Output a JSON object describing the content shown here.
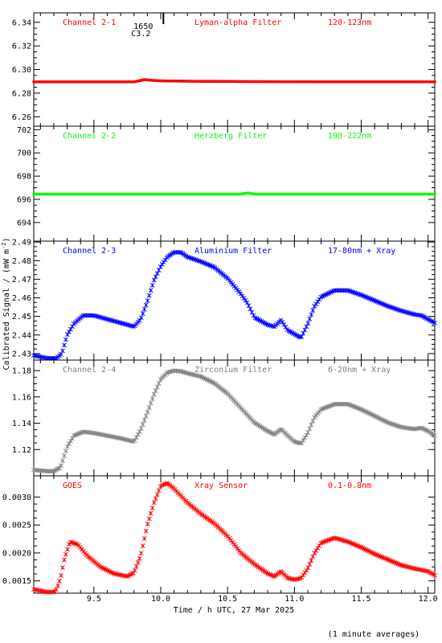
{
  "figure": {
    "xlabel": "Time / h UTC, 27 Mar 2025",
    "ylabel": "Calibrated Signal / (mW m",
    "ylabel_sup": "-2",
    "ylabel_close": ")",
    "footnote": "(1 minute averages)",
    "x_ticks": [
      "9.5",
      "10.0",
      "10.5",
      "11.0",
      "11.5",
      "12.0"
    ],
    "flare_marker": {
      "x": 10.02,
      "class_label": "1650",
      "level_label": "C3.2"
    }
  },
  "chart_data": [
    {
      "type": "scatter",
      "channel": "Channel 2-1",
      "filter": "Lyman-alpha Filter",
      "band": "120-123nm",
      "color": "#ff0000",
      "xlim": [
        9.05,
        12.05
      ],
      "ylim": [
        6.252,
        6.348
      ],
      "y_ticks": [
        "6.26",
        "6.28",
        "6.30",
        "6.32",
        "6.34"
      ],
      "series": [
        {
          "x": [
            9.05,
            9.8,
            9.84,
            9.88,
            9.92,
            9.98,
            10.1,
            10.6,
            11.0,
            11.5,
            12.05
          ],
          "y": [
            6.2895,
            6.2895,
            6.2905,
            6.2915,
            6.291,
            6.2905,
            6.2902,
            6.2898,
            6.2897,
            6.2896,
            6.2895
          ]
        }
      ]
    },
    {
      "type": "scatter",
      "channel": "Channel 2-2",
      "filter": "Herzberg Filter",
      "band": "190-222nm",
      "color": "#00ff00",
      "xlim": [
        9.05,
        12.05
      ],
      "ylim": [
        692.4,
        702.3
      ],
      "y_ticks": [
        "694",
        "696",
        "698",
        "700",
        "702"
      ],
      "series": [
        {
          "x": [
            9.05,
            9.5,
            10.0,
            10.6,
            10.65,
            10.7,
            11.0,
            11.5,
            12.05
          ],
          "y": [
            696.45,
            696.45,
            696.45,
            696.45,
            696.55,
            696.45,
            696.45,
            696.45,
            696.45
          ]
        }
      ]
    },
    {
      "type": "scatter",
      "channel": "Channel 2-3",
      "filter": "Aluminium Filter",
      "band": "17-80nm + Xray",
      "color": "#0000ff",
      "xlim": [
        9.05,
        12.05
      ],
      "ylim": [
        2.4265,
        2.4905
      ],
      "y_ticks": [
        "2.43",
        "2.44",
        "2.45",
        "2.46",
        "2.47",
        "2.48",
        "2.49"
      ],
      "series": [
        {
          "x": [
            9.05,
            9.15,
            9.22,
            9.26,
            9.3,
            9.35,
            9.42,
            9.5,
            9.6,
            9.7,
            9.8,
            9.85,
            9.9,
            9.95,
            10.0,
            10.05,
            10.1,
            10.15,
            10.2,
            10.3,
            10.4,
            10.5,
            10.6,
            10.65,
            10.7,
            10.8,
            10.85,
            10.9,
            10.95,
            11.0,
            11.05,
            11.1,
            11.15,
            11.2,
            11.3,
            11.4,
            11.5,
            11.6,
            11.7,
            11.8,
            11.9,
            11.95,
            12.0,
            12.05
          ],
          "y": [
            2.429,
            2.4275,
            2.4275,
            2.43,
            2.44,
            2.446,
            2.4505,
            2.4505,
            2.4485,
            2.4465,
            2.4445,
            2.4485,
            2.458,
            2.4695,
            2.477,
            2.482,
            2.4845,
            2.4845,
            2.482,
            2.4795,
            2.4765,
            2.4705,
            2.462,
            2.457,
            2.4495,
            2.4455,
            2.4445,
            2.448,
            2.4425,
            2.4405,
            2.4385,
            2.446,
            2.4555,
            2.4605,
            2.464,
            2.464,
            2.4615,
            2.4585,
            2.4555,
            2.453,
            2.451,
            2.4505,
            2.4485,
            2.4465
          ]
        }
      ]
    },
    {
      "type": "scatter",
      "channel": "Channel 2-4",
      "filter": "Zirconium Filter",
      "band": "6-20nm + Xray",
      "color": "#808080",
      "xlim": [
        9.05,
        12.05
      ],
      "ylim": [
        1.1,
        1.188
      ],
      "y_ticks": [
        "1.12",
        "1.14",
        "1.16",
        "1.18"
      ],
      "series": [
        {
          "x": [
            9.05,
            9.15,
            9.2,
            9.25,
            9.3,
            9.35,
            9.42,
            9.5,
            9.6,
            9.7,
            9.8,
            9.85,
            9.9,
            9.95,
            10.0,
            10.05,
            10.1,
            10.15,
            10.2,
            10.3,
            10.4,
            10.5,
            10.6,
            10.7,
            10.8,
            10.85,
            10.9,
            10.95,
            11.0,
            11.05,
            11.1,
            11.15,
            11.2,
            11.3,
            11.4,
            11.5,
            11.6,
            11.7,
            11.8,
            11.9,
            11.95,
            12.0,
            12.05
          ],
          "y": [
            1.1045,
            1.1035,
            1.1035,
            1.1065,
            1.122,
            1.1305,
            1.1335,
            1.1325,
            1.1305,
            1.1285,
            1.126,
            1.135,
            1.148,
            1.162,
            1.1735,
            1.1785,
            1.18,
            1.1795,
            1.178,
            1.1755,
            1.1705,
            1.1625,
            1.1515,
            1.1405,
            1.134,
            1.1315,
            1.1355,
            1.1305,
            1.126,
            1.1245,
            1.1325,
            1.1445,
            1.1505,
            1.1545,
            1.1545,
            1.1505,
            1.1455,
            1.1405,
            1.137,
            1.1355,
            1.1365,
            1.134,
            1.1305
          ]
        }
      ]
    },
    {
      "type": "scatter",
      "channel": "GOES",
      "filter": "Xray Sensor",
      "band": "0.1-0.8nm",
      "color": "#ff0000",
      "xlim": [
        9.05,
        12.05
      ],
      "ylim": [
        0.00128,
        0.00338
      ],
      "y_ticks": [
        "0.0015",
        "0.0020",
        "0.0025",
        "0.0030"
      ],
      "series": [
        {
          "x": [
            9.05,
            9.15,
            9.2,
            9.22,
            9.25,
            9.28,
            9.32,
            9.38,
            9.45,
            9.55,
            9.65,
            9.75,
            9.8,
            9.85,
            9.9,
            9.95,
            10.0,
            10.05,
            10.1,
            10.2,
            10.3,
            10.4,
            10.5,
            10.6,
            10.7,
            10.8,
            10.85,
            10.9,
            10.95,
            11.0,
            11.05,
            11.1,
            11.15,
            11.2,
            11.3,
            11.4,
            11.5,
            11.6,
            11.7,
            11.8,
            11.9,
            12.0,
            12.05
          ],
          "y": [
            0.00135,
            0.0013,
            0.0013,
            0.00135,
            0.00155,
            0.0019,
            0.0022,
            0.00215,
            0.00195,
            0.00175,
            0.00163,
            0.00158,
            0.00165,
            0.00195,
            0.0025,
            0.0029,
            0.0032,
            0.00325,
            0.00315,
            0.0029,
            0.0027,
            0.00253,
            0.0023,
            0.002,
            0.0018,
            0.00163,
            0.00158,
            0.00167,
            0.00155,
            0.00152,
            0.00155,
            0.00172,
            0.002,
            0.00218,
            0.00227,
            0.0022,
            0.0021,
            0.00198,
            0.00188,
            0.00178,
            0.00172,
            0.00167,
            0.0016
          ]
        }
      ]
    }
  ]
}
